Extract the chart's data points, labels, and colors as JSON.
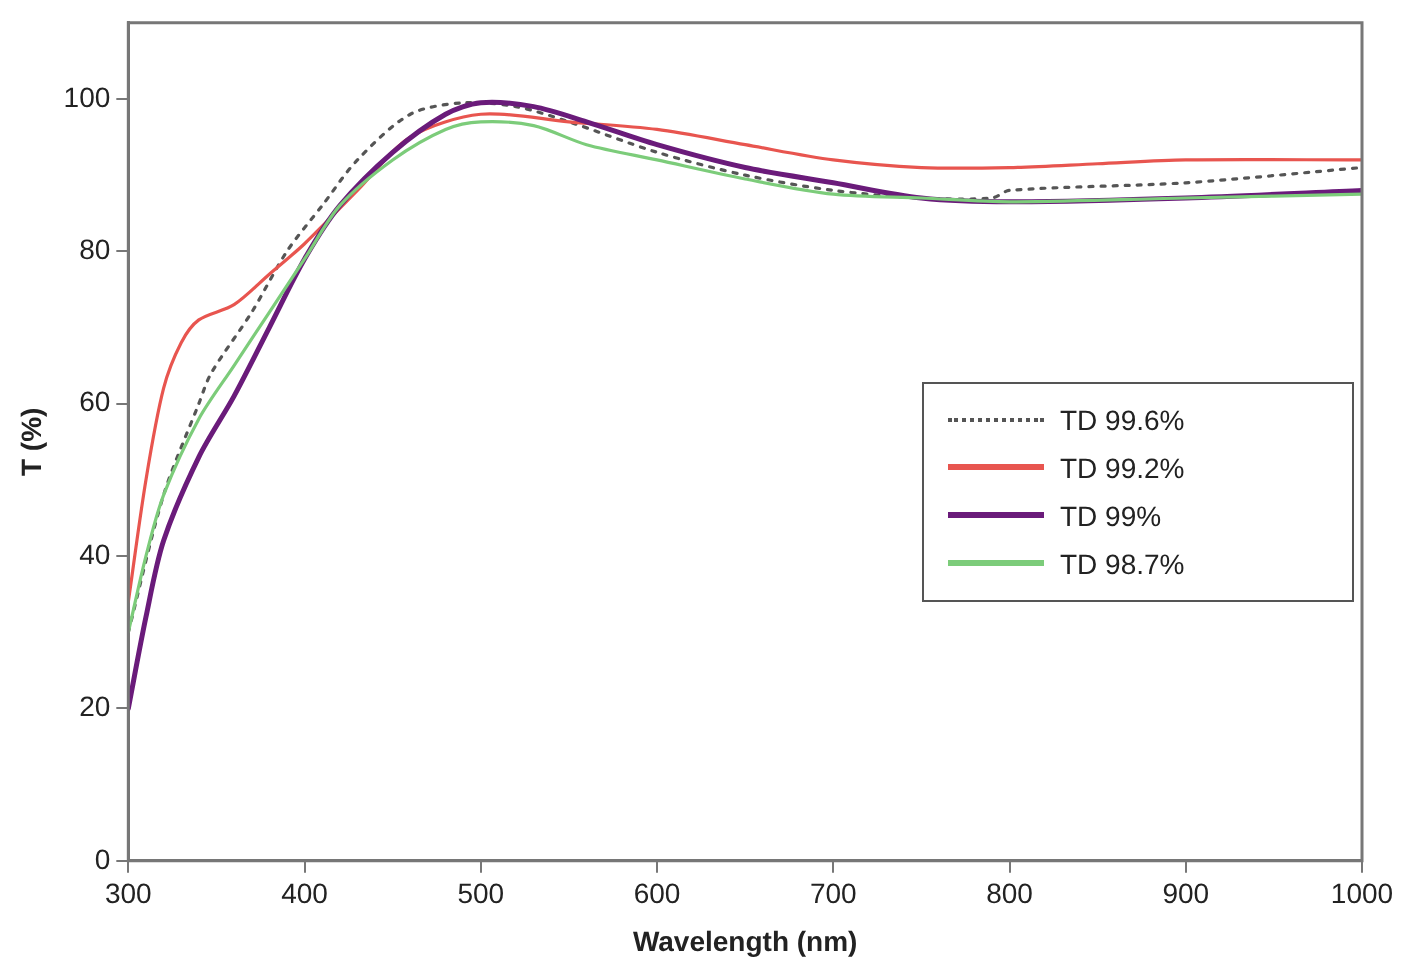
{
  "chart_data": {
    "type": "line",
    "xlabel": "Wavelength (nm)",
    "ylabel": "T (%)",
    "xlim": [
      300,
      1000
    ],
    "xticks": [
      300,
      400,
      500,
      600,
      700,
      800,
      900,
      1000
    ],
    "ylim": [
      0,
      110
    ],
    "yticks": [
      0,
      20,
      40,
      60,
      80,
      100
    ],
    "grid": false,
    "legend": "right",
    "marker": "none",
    "series": [
      {
        "name": "TD 99.6%",
        "color": "#555555",
        "line_style": "dotted",
        "x": [
          300,
          320,
          340,
          347,
          370,
          390,
          410,
          430,
          460,
          490,
          520,
          550,
          600,
          650,
          700,
          750,
          790,
          800,
          900,
          1000
        ],
        "values": [
          30,
          48,
          60,
          64,
          72,
          80,
          86,
          92,
          98,
          99.5,
          99,
          97,
          93,
          90,
          88,
          87,
          87,
          88,
          89,
          91
        ]
      },
      {
        "name": "TD 99.2%",
        "color": "#e8554f",
        "line_style": "solid",
        "x": [
          300,
          310,
          320,
          330,
          340,
          360,
          380,
          400,
          430,
          460,
          500,
          550,
          600,
          650,
          700,
          750,
          800,
          850,
          900,
          1000
        ],
        "values": [
          34,
          50,
          62,
          68,
          71,
          73,
          77,
          81,
          88,
          95,
          98,
          97,
          96,
          94,
          92,
          91,
          91,
          91.5,
          92,
          92
        ]
      },
      {
        "name": "TD 99%",
        "color": "#6a1b7a",
        "line_style": "solid",
        "x": [
          300,
          310,
          320,
          340,
          360,
          380,
          400,
          420,
          450,
          480,
          500,
          530,
          560,
          600,
          650,
          700,
          750,
          800,
          900,
          1000
        ],
        "values": [
          20,
          32,
          42,
          53,
          61,
          70,
          79,
          86,
          93,
          98,
          99.5,
          99,
          97,
          94,
          91,
          89,
          87,
          86.5,
          87,
          88
        ]
      },
      {
        "name": "TD 98.7%",
        "color": "#7ccc7a",
        "line_style": "solid",
        "x": [
          300,
          310,
          320,
          340,
          360,
          380,
          400,
          420,
          450,
          480,
          500,
          530,
          560,
          600,
          650,
          700,
          750,
          800,
          900,
          1000
        ],
        "values": [
          30,
          40,
          48,
          58,
          65,
          72,
          79,
          86,
          92,
          96,
          97,
          96.5,
          94,
          92,
          89.5,
          87.5,
          87,
          86.5,
          87,
          87.5
        ]
      }
    ]
  }
}
